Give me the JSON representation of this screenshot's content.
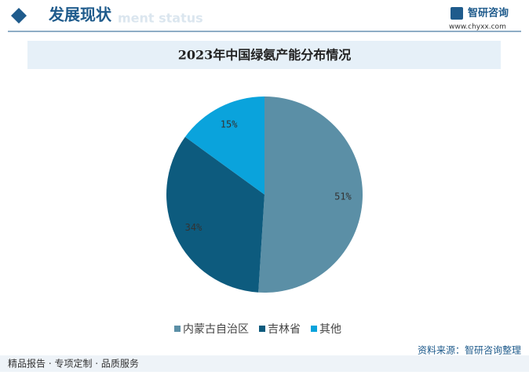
{
  "header": {
    "title": "发展现状",
    "subtitle": "ment status",
    "logo": "智研咨询",
    "url": "www.chyxx.com"
  },
  "chart_data": {
    "type": "pie",
    "title": "2023年中国绿氨产能分布情况",
    "categories": [
      "内蒙古自治区",
      "吉林省",
      "其他"
    ],
    "values": [
      51,
      34,
      15
    ],
    "value_labels": [
      "51%",
      "34%",
      "15%"
    ],
    "colors": [
      "#5b8fa6",
      "#0d5b7e",
      "#0aa3dc"
    ],
    "legend": "bottom"
  },
  "footer": {
    "left": "精品报告 · 专项定制 · 品质服务",
    "source": "资料来源：智研咨询整理"
  }
}
